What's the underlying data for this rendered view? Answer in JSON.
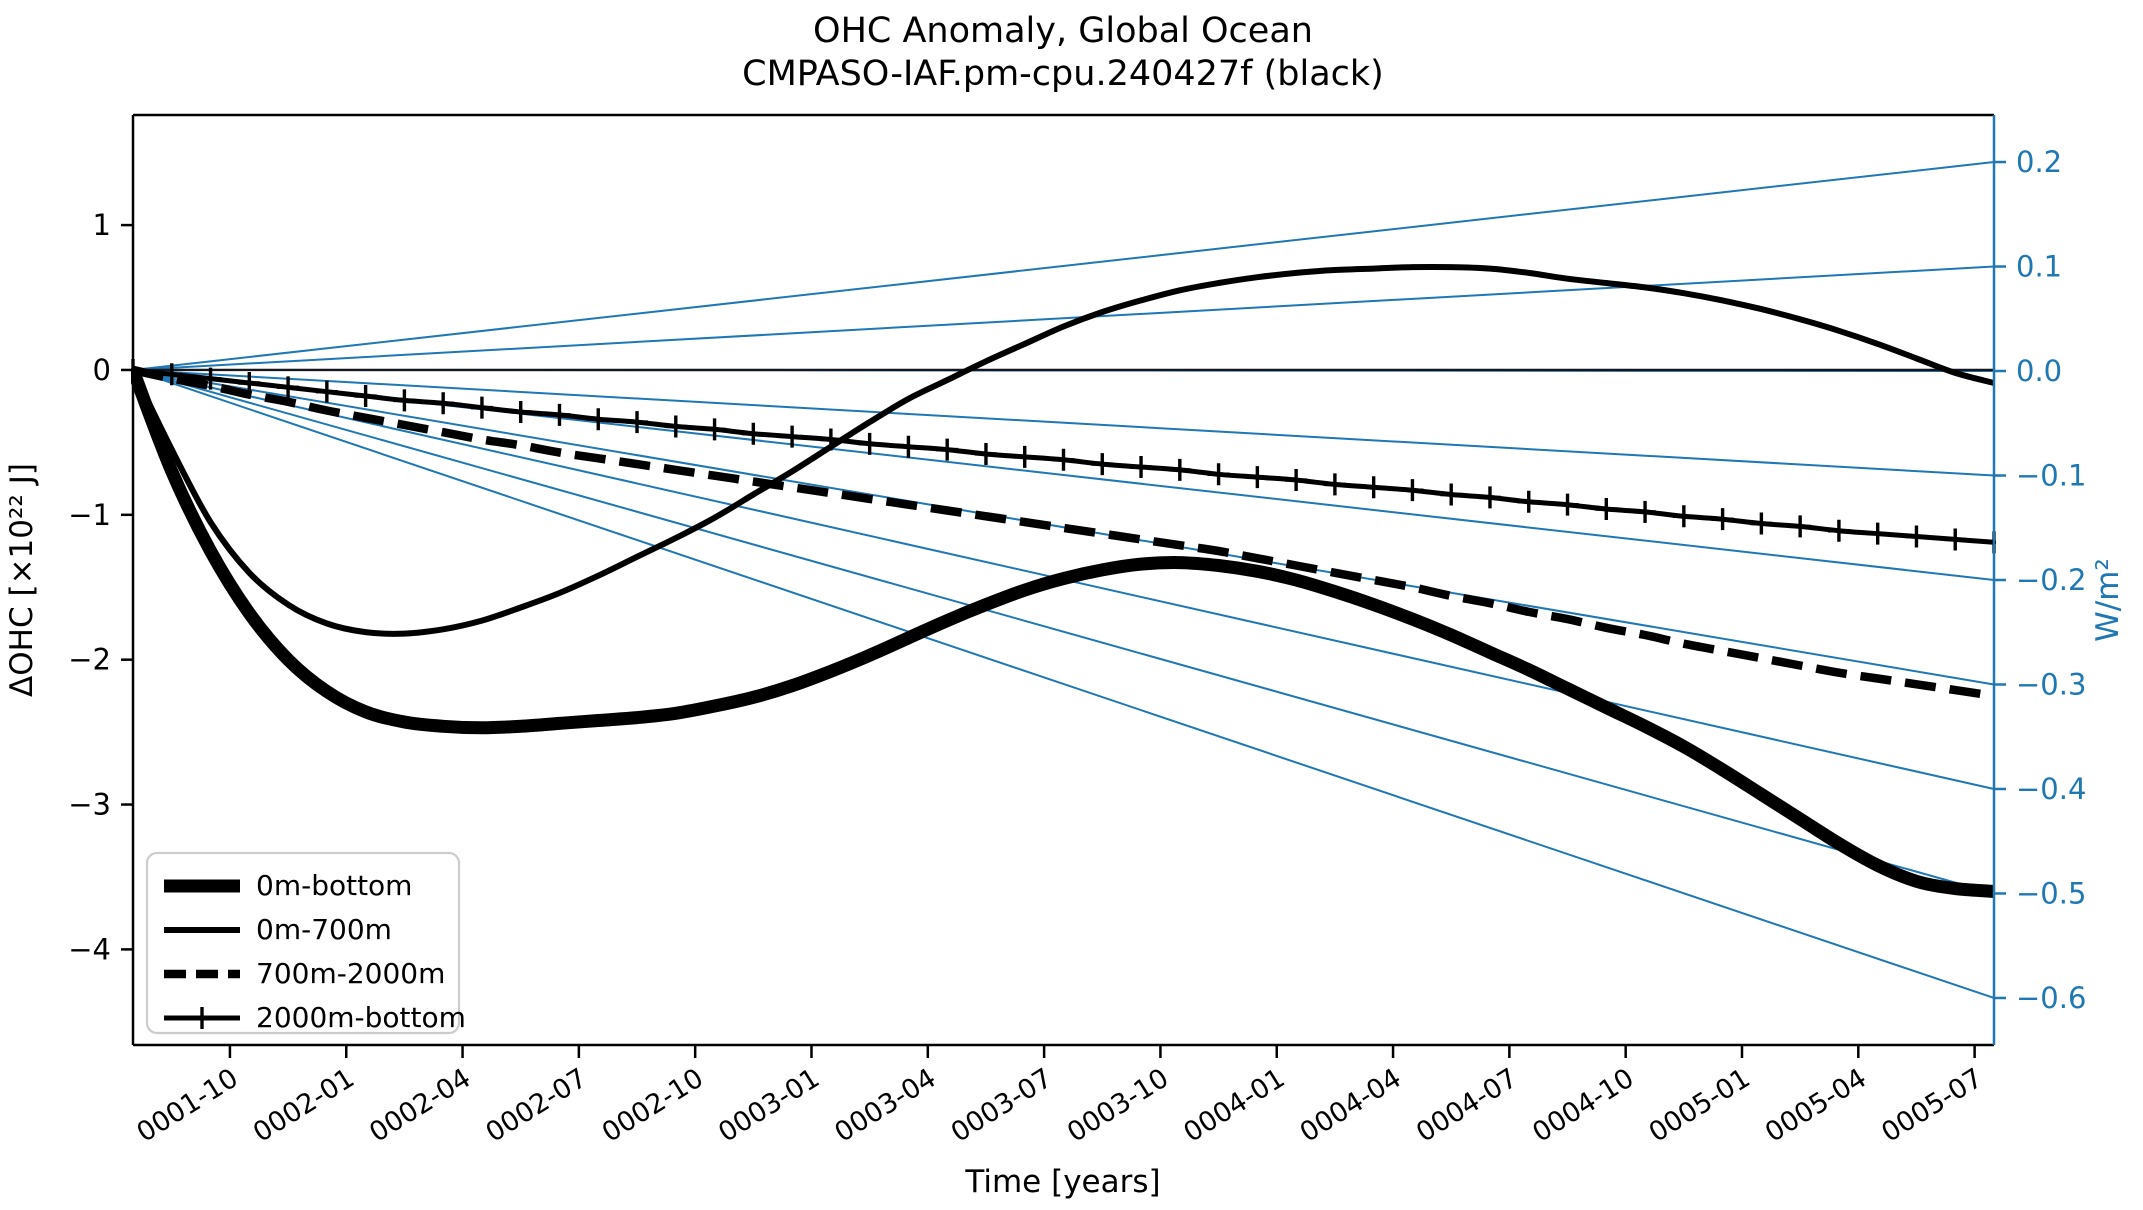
{
  "title_line1": "OHC Anomaly, Global Ocean",
  "title_line2": "CMPASO-IAF.pm-cpu.240427f (black)",
  "colors": {
    "accent_blue": "#1f77b4",
    "line_black": "#000000",
    "legend_border": "#cccccc",
    "zero_line": "#16161d"
  },
  "legend": {
    "items": [
      "0m-bottom",
      "0m-700m",
      "700m-2000m",
      "2000m-bottom"
    ]
  },
  "chart_data": {
    "type": "line",
    "title": "OHC Anomaly, Global Ocean",
    "subtitle": "CMPASO-IAF.pm-cpu.240427f (black)",
    "xlabel": "Time [years]",
    "ylabel_left": "ΔOHC [×10²² J]",
    "ylabel_right": "W/m²",
    "grid": false,
    "legend_position": "lower left",
    "x_months": [
      "0001-07",
      "0001-08",
      "0001-09",
      "0001-10",
      "0001-11",
      "0001-12",
      "0002-01",
      "0002-02",
      "0002-03",
      "0002-04",
      "0002-05",
      "0002-06",
      "0002-07",
      "0002-08",
      "0002-09",
      "0002-10",
      "0002-11",
      "0002-12",
      "0003-01",
      "0003-02",
      "0003-03",
      "0003-04",
      "0003-05",
      "0003-06",
      "0003-07",
      "0003-08",
      "0003-09",
      "0003-10",
      "0003-11",
      "0003-12",
      "0004-01",
      "0004-02",
      "0004-03",
      "0004-04",
      "0004-05",
      "0004-06",
      "0004-07",
      "0004-08",
      "0004-09",
      "0004-10",
      "0004-11",
      "0004-12",
      "0005-01",
      "0005-02",
      "0005-03",
      "0005-04",
      "0005-05",
      "0005-06",
      "0005-07"
    ],
    "x_tick_labels": [
      "0001-10",
      "0002-01",
      "0002-04",
      "0002-07",
      "0002-10",
      "0003-01",
      "0003-04",
      "0003-07",
      "0003-10",
      "0004-01",
      "0004-04",
      "0004-07",
      "0004-10",
      "0005-01",
      "0005-04",
      "0005-07"
    ],
    "y_left_ticks": [
      1,
      0,
      -1,
      -2,
      -3,
      -4
    ],
    "y_left_lim": [
      -4.66,
      1.76
    ],
    "y_right_ticks": [
      0.2,
      0.1,
      0.0,
      -0.1,
      -0.2,
      -0.3,
      -0.4,
      -0.5,
      -0.6
    ],
    "y_right_lim": [
      -0.645,
      0.245
    ],
    "reference_lines_wm2": [
      0.2,
      0.1,
      0.0,
      -0.1,
      -0.2,
      -0.3,
      -0.4,
      -0.5,
      -0.6
    ],
    "series": [
      {
        "name": "0m-bottom",
        "style": "thick",
        "values": [
          0.0,
          -0.7,
          -1.25,
          -1.68,
          -2.0,
          -2.22,
          -2.36,
          -2.43,
          -2.46,
          -2.47,
          -2.46,
          -2.44,
          -2.42,
          -2.4,
          -2.37,
          -2.32,
          -2.26,
          -2.18,
          -2.08,
          -1.97,
          -1.85,
          -1.73,
          -1.62,
          -1.52,
          -1.44,
          -1.38,
          -1.34,
          -1.33,
          -1.35,
          -1.39,
          -1.45,
          -1.53,
          -1.62,
          -1.72,
          -1.83,
          -1.95,
          -2.07,
          -2.2,
          -2.33,
          -2.46,
          -2.6,
          -2.76,
          -2.93,
          -3.1,
          -3.27,
          -3.42,
          -3.53,
          -3.58,
          -3.6
        ]
      },
      {
        "name": "0m-700m",
        "style": "medium",
        "values": [
          0.0,
          -0.55,
          -1.05,
          -1.4,
          -1.62,
          -1.75,
          -1.81,
          -1.82,
          -1.79,
          -1.73,
          -1.64,
          -1.54,
          -1.42,
          -1.29,
          -1.16,
          -1.02,
          -0.86,
          -0.7,
          -0.53,
          -0.36,
          -0.2,
          -0.07,
          0.06,
          0.18,
          0.3,
          0.4,
          0.48,
          0.55,
          0.6,
          0.64,
          0.67,
          0.69,
          0.7,
          0.71,
          0.71,
          0.7,
          0.67,
          0.63,
          0.6,
          0.57,
          0.53,
          0.48,
          0.42,
          0.35,
          0.27,
          0.18,
          0.08,
          -0.02,
          -0.09
        ]
      },
      {
        "name": "700m-2000m",
        "style": "dashed",
        "values": [
          0.0,
          -0.06,
          -0.11,
          -0.17,
          -0.22,
          -0.28,
          -0.33,
          -0.38,
          -0.43,
          -0.48,
          -0.52,
          -0.57,
          -0.61,
          -0.65,
          -0.69,
          -0.73,
          -0.77,
          -0.81,
          -0.85,
          -0.89,
          -0.93,
          -0.97,
          -1.01,
          -1.05,
          -1.09,
          -1.13,
          -1.17,
          -1.21,
          -1.25,
          -1.3,
          -1.35,
          -1.4,
          -1.45,
          -1.5,
          -1.56,
          -1.61,
          -1.67,
          -1.72,
          -1.78,
          -1.83,
          -1.89,
          -1.94,
          -1.99,
          -2.04,
          -2.09,
          -2.13,
          -2.17,
          -2.21,
          -2.25
        ]
      },
      {
        "name": "2000m-bottom",
        "style": "plus-markers",
        "values": [
          0.0,
          -0.03,
          -0.06,
          -0.09,
          -0.12,
          -0.15,
          -0.18,
          -0.21,
          -0.23,
          -0.26,
          -0.29,
          -0.31,
          -0.34,
          -0.36,
          -0.39,
          -0.41,
          -0.44,
          -0.46,
          -0.48,
          -0.51,
          -0.53,
          -0.55,
          -0.58,
          -0.6,
          -0.62,
          -0.65,
          -0.67,
          -0.69,
          -0.72,
          -0.74,
          -0.76,
          -0.79,
          -0.81,
          -0.83,
          -0.86,
          -0.88,
          -0.91,
          -0.93,
          -0.96,
          -0.98,
          -1.01,
          -1.03,
          -1.06,
          -1.08,
          -1.11,
          -1.13,
          -1.15,
          -1.17,
          -1.19
        ]
      }
    ]
  }
}
